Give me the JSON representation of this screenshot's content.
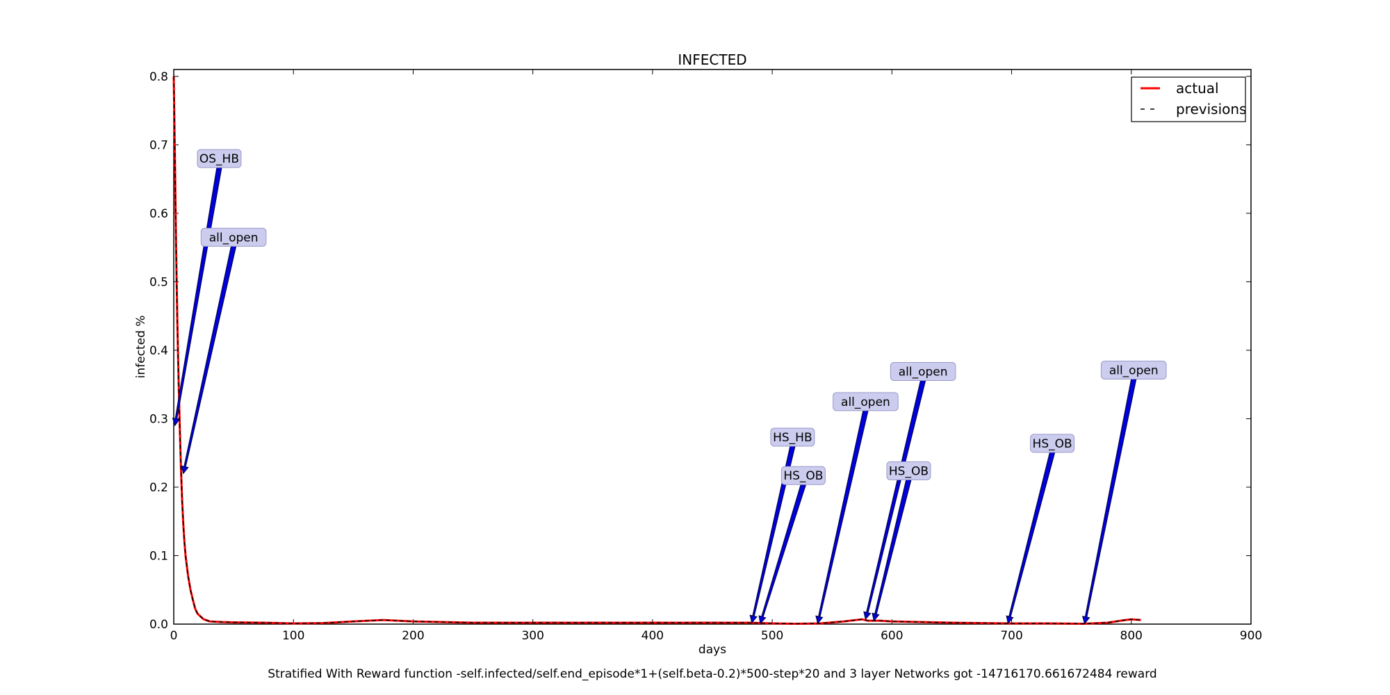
{
  "chart_data": {
    "type": "line",
    "title": "INFECTED",
    "xlabel": "days",
    "ylabel": "infected %",
    "caption": "Stratified With Reward function -self.infected/self.end_episode*1+(self.beta-0.2)*500-step*20 and 3 layer Networks got -14716170.661672484 reward",
    "xlim": [
      0,
      900
    ],
    "ylim": [
      0,
      0.81
    ],
    "xticks": [
      0,
      100,
      200,
      300,
      400,
      500,
      600,
      700,
      800,
      900
    ],
    "yticks": [
      0.0,
      0.1,
      0.2,
      0.3,
      0.4,
      0.5,
      0.6,
      0.7,
      0.8
    ],
    "legend_position": "top-right",
    "series": [
      {
        "name": "actual",
        "color": "#ff0000",
        "style": "solid",
        "x": [
          0,
          1,
          2,
          3,
          4,
          5,
          6,
          7,
          8,
          9,
          10,
          12,
          14,
          16,
          18,
          20,
          25,
          30,
          40,
          50,
          75,
          100,
          125,
          150,
          175,
          200,
          250,
          300,
          350,
          400,
          450,
          480,
          490,
          500,
          520,
          540,
          560,
          575,
          580,
          590,
          600,
          650,
          700,
          730,
          760,
          780,
          795,
          800,
          808
        ],
        "y": [
          0.8,
          0.68,
          0.55,
          0.44,
          0.36,
          0.29,
          0.23,
          0.18,
          0.145,
          0.118,
          0.098,
          0.07,
          0.05,
          0.035,
          0.022,
          0.015,
          0.007,
          0.004,
          0.003,
          0.0025,
          0.002,
          0.001,
          0.0015,
          0.004,
          0.006,
          0.004,
          0.002,
          0.002,
          0.002,
          0.002,
          0.002,
          0.002,
          0.0015,
          0.001,
          0.0005,
          0.001,
          0.004,
          0.007,
          0.005,
          0.005,
          0.004,
          0.002,
          0.001,
          0.001,
          0.0005,
          0.002,
          0.006,
          0.007,
          0.006
        ]
      },
      {
        "name": "previsions",
        "color": "#000000",
        "style": "dashed",
        "x": [
          0,
          1,
          2,
          3,
          4,
          5,
          6,
          7,
          8,
          9,
          10,
          12,
          14,
          16,
          18,
          20,
          25,
          30,
          40,
          50,
          75,
          100,
          125,
          150,
          175,
          200,
          250,
          300,
          350,
          400,
          450,
          480,
          490,
          500,
          520,
          540,
          560,
          575,
          580,
          590,
          600,
          650,
          700,
          730,
          760,
          780,
          795,
          800,
          808
        ],
        "y": [
          0.8,
          0.68,
          0.55,
          0.44,
          0.36,
          0.29,
          0.23,
          0.18,
          0.145,
          0.118,
          0.098,
          0.07,
          0.05,
          0.035,
          0.022,
          0.015,
          0.007,
          0.004,
          0.003,
          0.0025,
          0.002,
          0.001,
          0.0015,
          0.004,
          0.006,
          0.004,
          0.002,
          0.002,
          0.002,
          0.002,
          0.002,
          0.002,
          0.0015,
          0.001,
          0.0005,
          0.001,
          0.004,
          0.007,
          0.005,
          0.005,
          0.004,
          0.002,
          0.001,
          0.001,
          0.0005,
          0.002,
          0.006,
          0.007,
          0.006
        ]
      }
    ],
    "annotations": [
      {
        "text": "OS_HB",
        "point": [
          1,
          0.29
        ],
        "label_pos": [
          38,
          0.68
        ]
      },
      {
        "text": "all_open",
        "point": [
          8,
          0.22
        ],
        "label_pos": [
          50,
          0.565
        ]
      },
      {
        "text": "HS_HB",
        "point": [
          483,
          0.002
        ],
        "label_pos": [
          517,
          0.273
        ]
      },
      {
        "text": "HS_OB",
        "point": [
          490,
          0.001
        ],
        "label_pos": [
          526,
          0.217
        ]
      },
      {
        "text": "all_open",
        "point": [
          538,
          0.001
        ],
        "label_pos": [
          578,
          0.325
        ]
      },
      {
        "text": "all_open",
        "point": [
          578,
          0.007
        ],
        "label_pos": [
          626,
          0.369
        ]
      },
      {
        "text": "HS_OB",
        "point": [
          585,
          0.005
        ],
        "label_pos": [
          614,
          0.224
        ]
      },
      {
        "text": "HS_OB",
        "point": [
          697,
          0.001
        ],
        "label_pos": [
          734,
          0.264
        ]
      },
      {
        "text": "all_open",
        "point": [
          761,
          0.0005
        ],
        "label_pos": [
          802,
          0.371
        ]
      }
    ],
    "annotation_box_color": "#ccccee",
    "annotation_arrow_color": "#0000dd"
  }
}
